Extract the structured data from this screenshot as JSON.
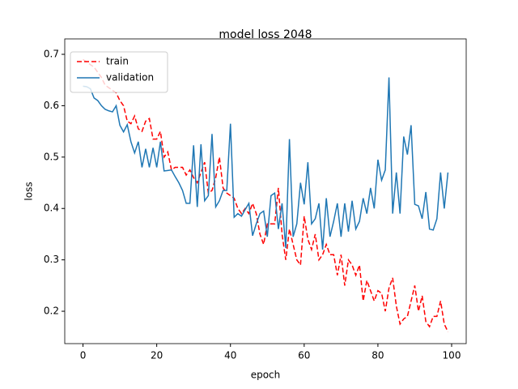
{
  "chart_data": {
    "type": "line",
    "title": "model loss 2048",
    "x_label": "epoch",
    "y_label": "loss",
    "x": [
      0,
      1,
      2,
      3,
      4,
      5,
      6,
      7,
      8,
      9,
      10,
      11,
      12,
      13,
      14,
      15,
      16,
      17,
      18,
      19,
      20,
      21,
      22,
      23,
      24,
      25,
      26,
      27,
      28,
      29,
      30,
      31,
      32,
      33,
      34,
      35,
      36,
      37,
      38,
      39,
      40,
      41,
      42,
      43,
      44,
      45,
      46,
      47,
      48,
      49,
      50,
      51,
      52,
      53,
      54,
      55,
      56,
      57,
      58,
      59,
      60,
      61,
      62,
      63,
      64,
      65,
      66,
      67,
      68,
      69,
      70,
      71,
      72,
      73,
      74,
      75,
      76,
      77,
      78,
      79,
      80,
      81,
      82,
      83,
      84,
      85,
      86,
      87,
      88,
      89,
      90,
      91,
      92,
      93,
      94,
      95,
      96,
      97,
      98,
      99
    ],
    "series": [
      {
        "name": "train",
        "color": "red",
        "linestyle": "dashed",
        "values": [
          0.69,
          0.685,
          0.68,
          0.675,
          0.665,
          0.655,
          0.64,
          0.635,
          0.63,
          0.625,
          0.61,
          0.6,
          0.57,
          0.565,
          0.58,
          0.555,
          0.55,
          0.57,
          0.575,
          0.535,
          0.535,
          0.55,
          0.5,
          0.51,
          0.475,
          0.48,
          0.48,
          0.48,
          0.465,
          0.475,
          0.46,
          0.45,
          0.47,
          0.49,
          0.43,
          0.435,
          0.46,
          0.5,
          0.44,
          0.43,
          0.425,
          0.42,
          0.4,
          0.39,
          0.4,
          0.39,
          0.41,
          0.39,
          0.35,
          0.33,
          0.37,
          0.37,
          0.37,
          0.44,
          0.35,
          0.3,
          0.36,
          0.33,
          0.3,
          0.29,
          0.385,
          0.34,
          0.32,
          0.35,
          0.3,
          0.31,
          0.33,
          0.31,
          0.31,
          0.27,
          0.31,
          0.25,
          0.3,
          0.29,
          0.27,
          0.29,
          0.22,
          0.26,
          0.24,
          0.22,
          0.24,
          0.235,
          0.2,
          0.245,
          0.265,
          0.21,
          0.175,
          0.185,
          0.19,
          0.22,
          0.25,
          0.2,
          0.23,
          0.18,
          0.17,
          0.19,
          0.19,
          0.22,
          0.175,
          0.16
        ]
      },
      {
        "name": "validation",
        "color": "#1f77b4",
        "linestyle": "solid",
        "values": [
          0.638,
          0.637,
          0.633,
          0.615,
          0.61,
          0.6,
          0.593,
          0.59,
          0.588,
          0.6,
          0.562,
          0.549,
          0.563,
          0.53,
          0.508,
          0.53,
          0.48,
          0.516,
          0.48,
          0.518,
          0.48,
          0.53,
          0.473,
          0.474,
          0.475,
          0.462,
          0.45,
          0.435,
          0.41,
          0.41,
          0.523,
          0.403,
          0.525,
          0.415,
          0.425,
          0.545,
          0.403,
          0.415,
          0.435,
          0.435,
          0.565,
          0.383,
          0.39,
          0.385,
          0.398,
          0.41,
          0.347,
          0.37,
          0.39,
          0.395,
          0.345,
          0.425,
          0.43,
          0.36,
          0.41,
          0.323,
          0.535,
          0.345,
          0.37,
          0.45,
          0.408,
          0.49,
          0.37,
          0.38,
          0.41,
          0.32,
          0.42,
          0.345,
          0.375,
          0.41,
          0.345,
          0.41,
          0.355,
          0.415,
          0.36,
          0.375,
          0.42,
          0.39,
          0.44,
          0.4,
          0.495,
          0.455,
          0.475,
          0.655,
          0.39,
          0.47,
          0.39,
          0.54,
          0.505,
          0.562,
          0.408,
          0.405,
          0.38,
          0.432,
          0.36,
          0.358,
          0.38,
          0.47,
          0.4,
          0.47
        ]
      }
    ],
    "xlim": [
      -4.95,
      103.95
    ],
    "xticks": [
      0,
      20,
      40,
      60,
      80,
      100
    ],
    "ylim": [
      0.137,
      0.73
    ],
    "yticks": [
      0.2,
      0.3,
      0.4,
      0.5,
      0.6,
      0.7
    ],
    "legend": "upper left",
    "grid": false
  }
}
